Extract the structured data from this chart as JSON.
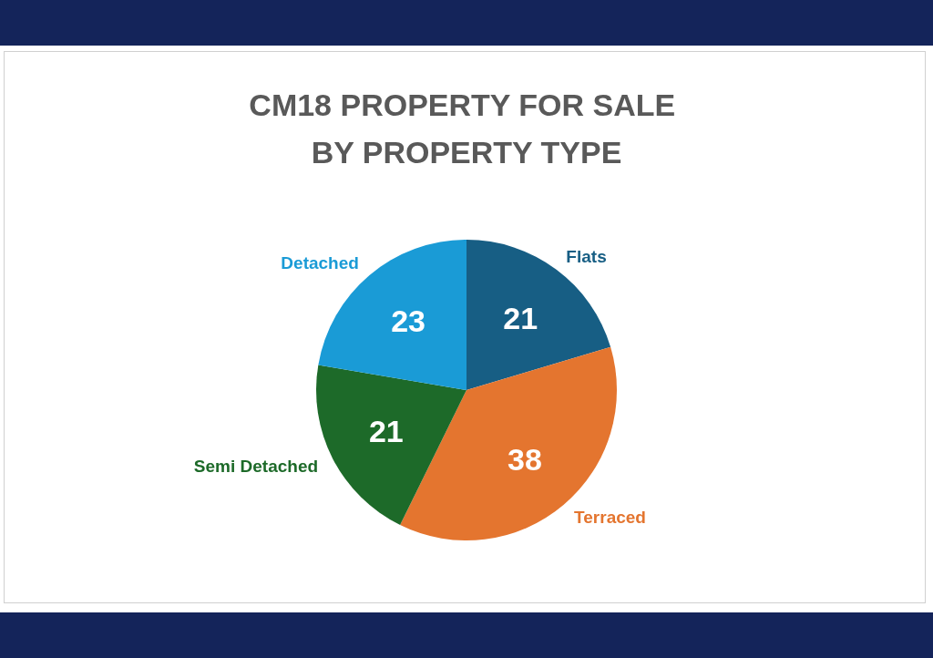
{
  "chart_data": {
    "type": "pie",
    "title": "CM18 PROPERTY FOR SALE BY PROPERTY TYPE",
    "categories": [
      "Flats",
      "Terraced",
      "Semi Detached",
      "Detached"
    ],
    "values": [
      21,
      38,
      21,
      23
    ],
    "colors": [
      "#175e84",
      "#e4752f",
      "#1d6a29",
      "#1a9bd6"
    ],
    "data_labels": true
  }
}
